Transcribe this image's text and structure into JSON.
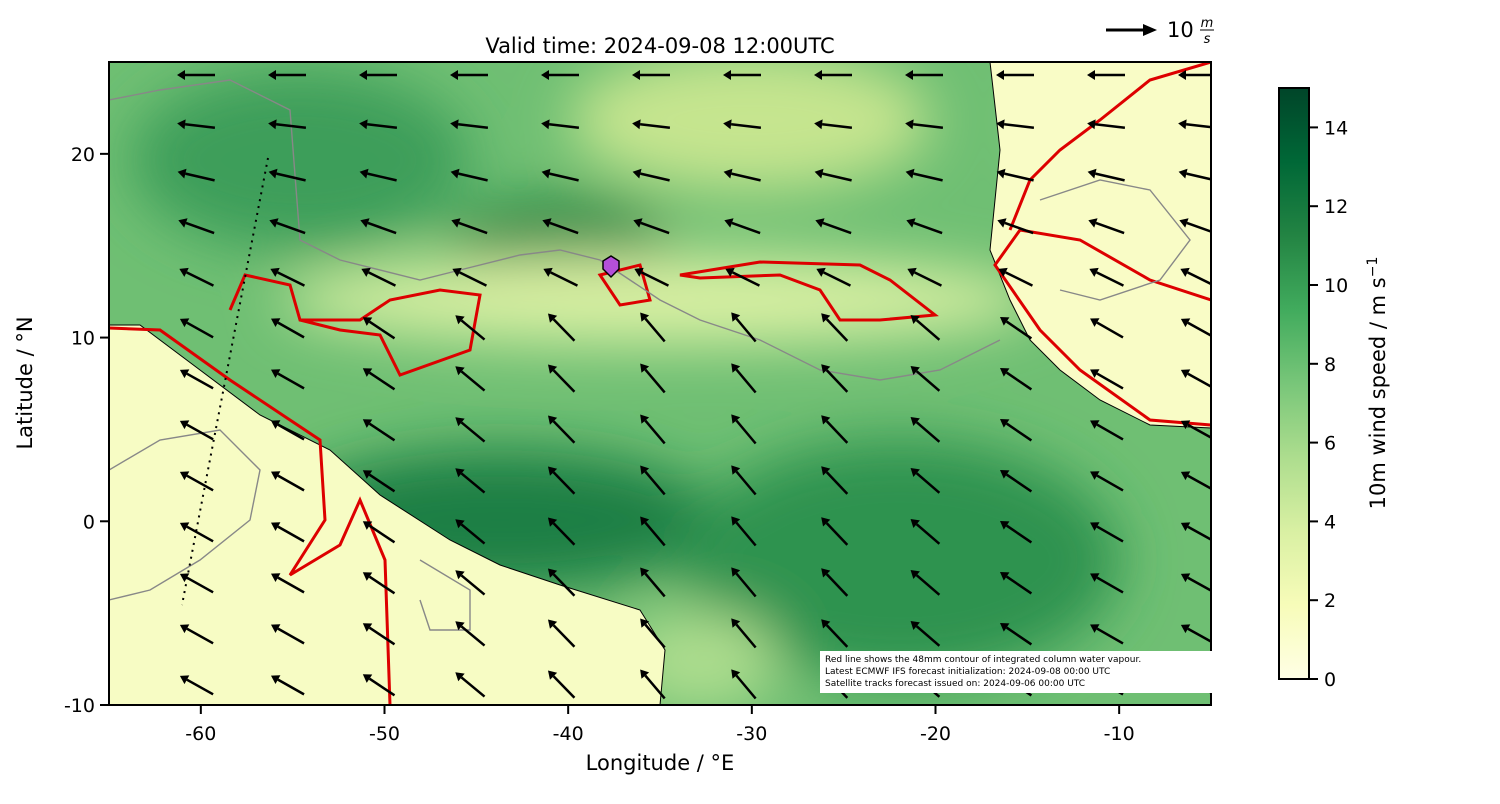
{
  "chart_data": {
    "type": "map",
    "title": "Valid time: 2024-09-08 12:00UTC",
    "x_label": "Longitude / °E",
    "y_label": "Latitude / °N",
    "xlim": [
      -65,
      -5
    ],
    "xticks": [
      -60,
      -50,
      -40,
      -30,
      -20,
      -10
    ],
    "ylim": [
      -10,
      25
    ],
    "yticks": [
      -10,
      0,
      10,
      20
    ],
    "colorbar_label": "10m wind speed / m s",
    "colorbar_label_sup": "−1",
    "clim": [
      0,
      15
    ],
    "cticks": [
      0,
      2,
      4,
      6,
      8,
      10,
      12,
      14
    ],
    "colormap": [
      "#ffffe5",
      "#f7fcb9",
      "#d9f0a3",
      "#addd8e",
      "#78c679",
      "#41ab5d",
      "#238443",
      "#006837",
      "#004529"
    ],
    "quiver_key": {
      "number": "10",
      "unit_num": "m",
      "unit_den": "s"
    },
    "notes": [
      "Red line shows the 48mm contour of integrated column water vapour.",
      "Latest ECMWF IFS forecast initialization: 2024-09-08 00:00 UTC",
      "Satellite tracks forecast issued on: 2024-09-06 00:00 UTC"
    ]
  }
}
